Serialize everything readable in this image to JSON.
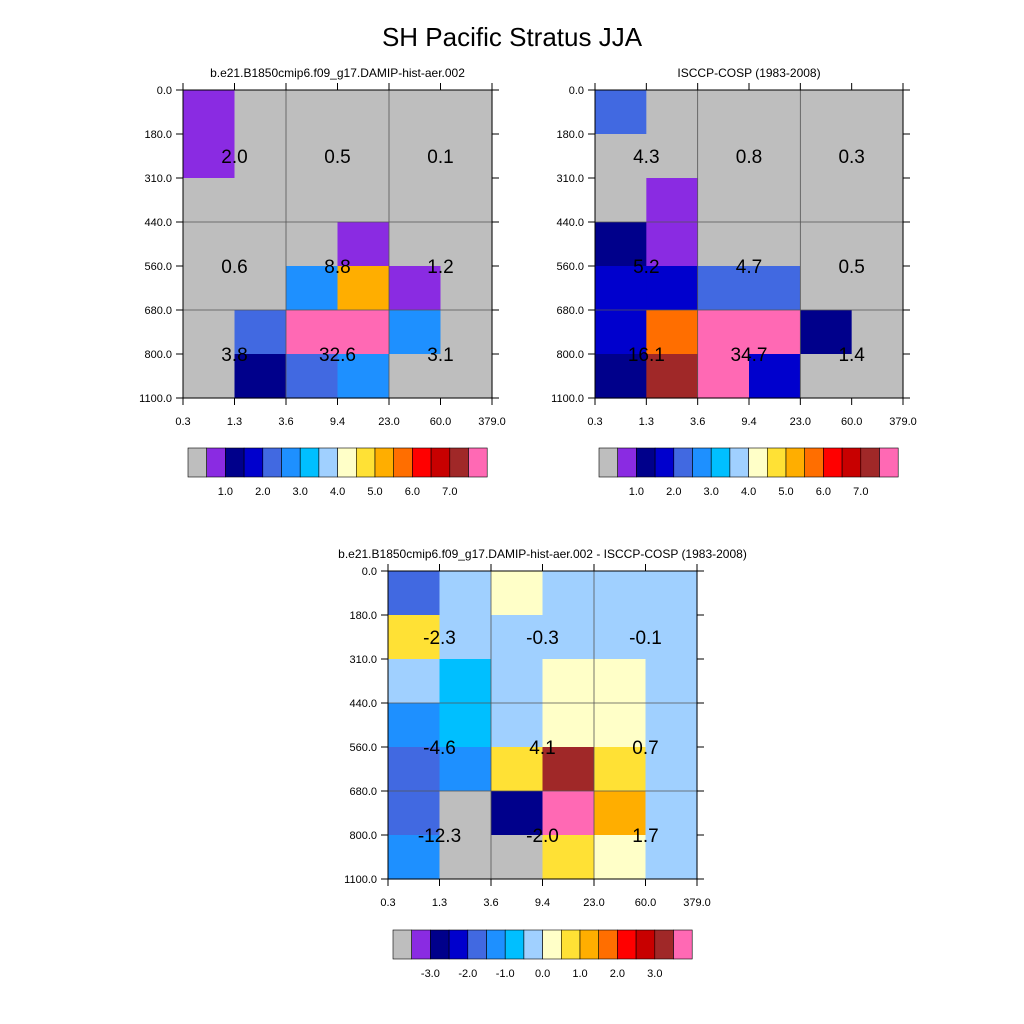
{
  "title": "SH Pacific Stratus JJA",
  "palette": {
    "colors": [
      "#bebebe",
      "#8a2be2",
      "#00008b",
      "#0000cd",
      "#4169e1",
      "#1e90ff",
      "#00bfff",
      "#a0d0ff",
      "#ffffc8",
      "#ffe135",
      "#ffae00",
      "#ff6e00",
      "#ff0000",
      "#c80000",
      "#a02828",
      "#ff69b4"
    ],
    "mean_labels": [
      "1.0",
      "2.0",
      "3.0",
      "4.0",
      "5.0",
      "6.0",
      "7.0"
    ],
    "diff_labels": [
      "-3.0",
      "-2.0",
      "-1.0",
      "0.0",
      "1.0",
      "2.0",
      "3.0"
    ]
  },
  "chart_data": [
    {
      "type": "heatmap",
      "title": "b.e21.B1850cmip6.f09_g17.DAMIP-hist-aer.002",
      "x_tick_labels": [
        "0.3",
        "1.3",
        "3.6",
        "9.4",
        "23.0",
        "60.0",
        "379.0"
      ],
      "y_tick_labels": [
        "0.0",
        "180.0",
        "310.0",
        "440.0",
        "560.0",
        "680.0",
        "800.0",
        "1100.0"
      ],
      "cells": [
        [
          1,
          0,
          0,
          0,
          0,
          0
        ],
        [
          1,
          0,
          0,
          0,
          0,
          0
        ],
        [
          0,
          0,
          0,
          0,
          0,
          0
        ],
        [
          0,
          0,
          0,
          1,
          0,
          0
        ],
        [
          0,
          0,
          5,
          10,
          1,
          0
        ],
        [
          0,
          4,
          15,
          15,
          5,
          0
        ],
        [
          0,
          2,
          4,
          5,
          0,
          0
        ]
      ],
      "grid_totals": [
        {
          "row": 0,
          "col": 0,
          "label": "2.0"
        },
        {
          "row": 0,
          "col": 1,
          "label": "0.5"
        },
        {
          "row": 0,
          "col": 2,
          "label": "0.1"
        },
        {
          "row": 1,
          "col": 0,
          "label": "0.6"
        },
        {
          "row": 1,
          "col": 1,
          "label": "8.8"
        },
        {
          "row": 1,
          "col": 2,
          "label": "1.2"
        },
        {
          "row": 2,
          "col": 0,
          "label": "3.8"
        },
        {
          "row": 2,
          "col": 1,
          "label": "32.6"
        },
        {
          "row": 2,
          "col": 2,
          "label": "3.1"
        }
      ],
      "legend": "mean"
    },
    {
      "type": "heatmap",
      "title": "ISCCP-COSP (1983-2008)",
      "x_tick_labels": [
        "0.3",
        "1.3",
        "3.6",
        "9.4",
        "23.0",
        "60.0",
        "379.0"
      ],
      "y_tick_labels": [
        "0.0",
        "180.0",
        "310.0",
        "440.0",
        "560.0",
        "680.0",
        "800.0",
        "1100.0"
      ],
      "cells": [
        [
          4,
          0,
          0,
          0,
          0,
          0
        ],
        [
          0,
          0,
          0,
          0,
          0,
          0
        ],
        [
          0,
          1,
          0,
          0,
          0,
          0
        ],
        [
          2,
          1,
          0,
          0,
          0,
          0
        ],
        [
          3,
          3,
          4,
          4,
          0,
          0
        ],
        [
          3,
          11,
          15,
          15,
          2,
          0
        ],
        [
          2,
          14,
          15,
          3,
          0,
          0
        ]
      ],
      "grid_totals": [
        {
          "row": 0,
          "col": 0,
          "label": "4.3"
        },
        {
          "row": 0,
          "col": 1,
          "label": "0.8"
        },
        {
          "row": 0,
          "col": 2,
          "label": "0.3"
        },
        {
          "row": 1,
          "col": 0,
          "label": "5.2"
        },
        {
          "row": 1,
          "col": 1,
          "label": "4.7"
        },
        {
          "row": 1,
          "col": 2,
          "label": "0.5"
        },
        {
          "row": 2,
          "col": 0,
          "label": "16.1"
        },
        {
          "row": 2,
          "col": 1,
          "label": "34.7"
        },
        {
          "row": 2,
          "col": 2,
          "label": "1.4"
        }
      ],
      "legend": "mean"
    },
    {
      "type": "heatmap",
      "title": "b.e21.B1850cmip6.f09_g17.DAMIP-hist-aer.002 - ISCCP-COSP (1983-2008)",
      "x_tick_labels": [
        "0.3",
        "1.3",
        "3.6",
        "9.4",
        "23.0",
        "60.0",
        "379.0"
      ],
      "y_tick_labels": [
        "0.0",
        "180.0",
        "310.0",
        "440.0",
        "560.0",
        "680.0",
        "800.0",
        "1100.0"
      ],
      "cells": [
        [
          4,
          7,
          8,
          7,
          7,
          7
        ],
        [
          9,
          7,
          7,
          7,
          7,
          7
        ],
        [
          7,
          6,
          7,
          8,
          8,
          7
        ],
        [
          5,
          6,
          7,
          8,
          8,
          7
        ],
        [
          4,
          5,
          9,
          14,
          9,
          7
        ],
        [
          4,
          0,
          2,
          15,
          10,
          7
        ],
        [
          5,
          0,
          0,
          9,
          8,
          7
        ]
      ],
      "grid_totals": [
        {
          "row": 0,
          "col": 0,
          "label": "-2.3"
        },
        {
          "row": 0,
          "col": 1,
          "label": "-0.3"
        },
        {
          "row": 0,
          "col": 2,
          "label": "-0.1"
        },
        {
          "row": 1,
          "col": 0,
          "label": "-4.6"
        },
        {
          "row": 1,
          "col": 1,
          "label": "4.1"
        },
        {
          "row": 1,
          "col": 2,
          "label": "0.7"
        },
        {
          "row": 2,
          "col": 0,
          "label": "-12.3"
        },
        {
          "row": 2,
          "col": 1,
          "label": "-2.0"
        },
        {
          "row": 2,
          "col": 2,
          "label": "1.7"
        }
      ],
      "legend": "diff"
    }
  ]
}
